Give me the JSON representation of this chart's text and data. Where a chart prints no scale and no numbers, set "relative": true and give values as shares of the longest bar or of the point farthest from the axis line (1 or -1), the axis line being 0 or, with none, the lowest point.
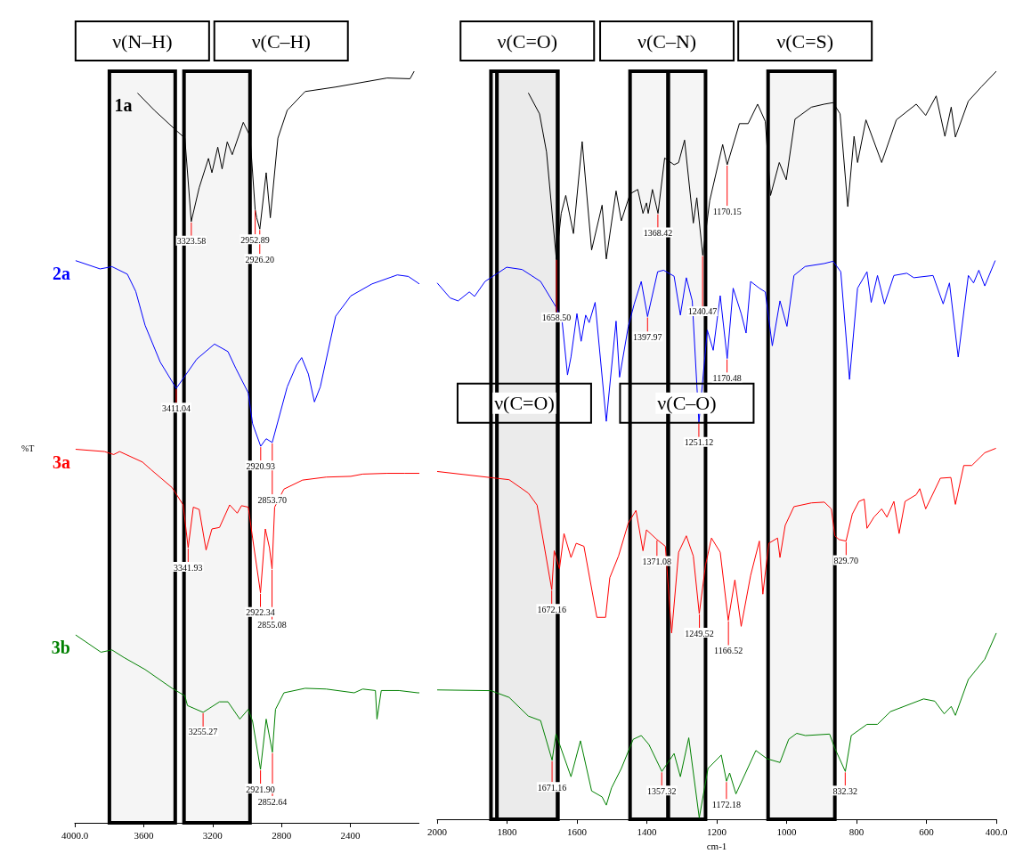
{
  "chart_data": [
    {
      "type": "line",
      "relative": true,
      "ylabel": "%T",
      "xlim": [
        4000,
        2000
      ],
      "xticks": [
        {
          "value": 4000,
          "label": "4000.0"
        },
        3600,
        3200,
        2800,
        2400,
        {
          "value": 2000,
          "label": null
        }
      ],
      "series": [
        {
          "name": "1a",
          "color": "#000000",
          "x": [
            3636,
            3538,
            3415,
            3361,
            3324,
            3278,
            3224,
            3204,
            3170,
            3145,
            3115,
            3086,
            3022,
            2983,
            2953,
            2944,
            2926,
            2889,
            2865,
            2821,
            2767,
            2663,
            2486,
            2187,
            2054,
            2030
          ],
          "values": [
            0.971,
            0.948,
            0.922,
            0.911,
            0.8,
            0.845,
            0.884,
            0.865,
            0.899,
            0.87,
            0.906,
            0.889,
            0.932,
            0.914,
            0.816,
            0.805,
            0.79,
            0.865,
            0.805,
            0.911,
            0.948,
            0.973,
            0.979,
            0.991,
            0.99,
            1.0
          ]
        },
        {
          "name": "2a",
          "color": "#0000ff",
          "x": [
            3995,
            3853,
            3784,
            3695,
            3646,
            3592,
            3504,
            3411,
            3292,
            3189,
            3111,
            3066,
            2993,
            2968,
            2921,
            2889,
            2854,
            2767,
            2713,
            2683,
            2644,
            2609,
            2575,
            2486,
            2398,
            2275,
            2128,
            2064,
            2000
          ],
          "values": [
            0.748,
            0.737,
            0.74,
            0.73,
            0.707,
            0.662,
            0.613,
            0.578,
            0.617,
            0.637,
            0.627,
            0.605,
            0.572,
            0.531,
            0.501,
            0.511,
            0.506,
            0.58,
            0.609,
            0.619,
            0.597,
            0.56,
            0.58,
            0.674,
            0.701,
            0.717,
            0.729,
            0.727,
            0.717
          ]
        },
        {
          "name": "3a",
          "color": "#ff0000",
          "x": [
            3995,
            3828,
            3774,
            3740,
            3607,
            3558,
            3435,
            3371,
            3342,
            3312,
            3278,
            3238,
            3204,
            3160,
            3101,
            3057,
            3032,
            2993,
            2968,
            2922,
            2894,
            2870,
            2855,
            2840,
            2786,
            2678,
            2541,
            2398,
            2329,
            2187,
            2084,
            2000
          ],
          "values": [
            0.497,
            0.494,
            0.49,
            0.494,
            0.48,
            0.47,
            0.446,
            0.423,
            0.366,
            0.42,
            0.417,
            0.363,
            0.391,
            0.393,
            0.423,
            0.412,
            0.422,
            0.42,
            0.379,
            0.306,
            0.391,
            0.366,
            0.338,
            0.42,
            0.444,
            0.456,
            0.46,
            0.461,
            0.464,
            0.465,
            0.465,
            0.465
          ]
        },
        {
          "name": "3b",
          "color": "#008000",
          "x": [
            3995,
            3848,
            3784,
            3715,
            3592,
            3435,
            3361,
            3346,
            3255,
            3160,
            3111,
            3042,
            2993,
            2968,
            2922,
            2889,
            2853,
            2835,
            2786,
            2663,
            2541,
            2378,
            2329,
            2255,
            2246,
            2221,
            2118,
            2010,
            2000
          ],
          "values": [
            0.25,
            0.227,
            0.23,
            0.22,
            0.204,
            0.179,
            0.169,
            0.156,
            0.147,
            0.161,
            0.161,
            0.138,
            0.151,
            0.135,
            0.071,
            0.138,
            0.094,
            0.151,
            0.173,
            0.179,
            0.178,
            0.173,
            0.178,
            0.176,
            0.138,
            0.176,
            0.176,
            0.173,
            0.173
          ]
        }
      ],
      "bands": [
        {
          "axis": "x",
          "from": 3799,
          "to": 3417,
          "label": "ν(N–H)"
        },
        {
          "axis": "x",
          "from": 3366,
          "to": 2983,
          "label": "ν(C–H)"
        }
      ],
      "annotations": [
        {
          "text": "3323.58",
          "x": 3323.58,
          "y": 0.8
        },
        {
          "text": "2952.89",
          "x": 2952.89,
          "y": 0.816
        },
        {
          "text": "2926.20",
          "x": 2926.2,
          "y": 0.79
        },
        {
          "text": "3411.04",
          "x": 3411.04,
          "y": 0.578
        },
        {
          "text": "2920.93",
          "x": 2920.93,
          "y": 0.501
        },
        {
          "text": "2853.70",
          "x": 2853.7,
          "y": 0.506
        },
        {
          "text": "3341.93",
          "x": 3341.93,
          "y": 0.366
        },
        {
          "text": "2922.34",
          "x": 2922.34,
          "y": 0.306
        },
        {
          "text": "2855.08",
          "x": 2855.08,
          "y": 0.338
        },
        {
          "text": "3255.27",
          "x": 3255.27,
          "y": 0.147
        },
        {
          "text": "2921.90",
          "x": 2921.9,
          "y": 0.071
        },
        {
          "text": "2852.64",
          "x": 2852.64,
          "y": 0.094
        }
      ]
    },
    {
      "type": "line",
      "relative": true,
      "xlabel": "cm-1",
      "xlim": [
        2000,
        400
      ],
      "xticks": [
        2000,
        1800,
        1600,
        1400,
        1200,
        1000,
        800,
        600,
        {
          "value": 400,
          "label": "400.0"
        }
      ],
      "series": [
        {
          "color": "#000000",
          "x": [
            1739,
            1707,
            1687,
            1659,
            1645,
            1632,
            1610,
            1585,
            1558,
            1528,
            1516,
            1488,
            1473,
            1448,
            1426,
            1411,
            1401,
            1396,
            1384,
            1368,
            1349,
            1322,
            1309,
            1292,
            1267,
            1257,
            1240,
            1220,
            1183,
            1170,
            1135,
            1110,
            1083,
            1061,
            1046,
            1021,
            1001,
            976,
            929,
            892,
            867,
            847,
            825,
            807,
            797,
            773,
            728,
            686,
            629,
            602,
            572,
            547,
            529,
            517,
            480,
            443,
            400
          ],
          "values": [
            0.971,
            0.943,
            0.892,
            0.749,
            0.81,
            0.834,
            0.783,
            0.906,
            0.761,
            0.821,
            0.749,
            0.84,
            0.8,
            0.836,
            0.842,
            0.81,
            0.824,
            0.81,
            0.842,
            0.81,
            0.884,
            0.875,
            0.878,
            0.908,
            0.797,
            0.831,
            0.754,
            0.827,
            0.902,
            0.875,
            0.93,
            0.93,
            0.956,
            0.933,
            0.834,
            0.878,
            0.855,
            0.936,
            0.952,
            0.956,
            0.958,
            0.943,
            0.819,
            0.913,
            0.878,
            0.935,
            0.878,
            0.935,
            0.956,
            0.941,
            0.967,
            0.913,
            0.952,
            0.912,
            0.96,
            0.979,
            1.0
          ]
        },
        {
          "color": "#0000ff",
          "x": [
            2000,
            1963,
            1940,
            1908,
            1893,
            1863,
            1801,
            1757,
            1704,
            1660,
            1642,
            1627,
            1617,
            1600,
            1588,
            1575,
            1565,
            1548,
            1516,
            1488,
            1478,
            1453,
            1436,
            1416,
            1398,
            1369,
            1352,
            1322,
            1304,
            1287,
            1270,
            1251,
            1227,
            1210,
            1190,
            1170,
            1153,
            1130,
            1116,
            1103,
            1078,
            1061,
            1041,
            1019,
            999,
            979,
            947,
            892,
            867,
            845,
            820,
            797,
            770,
            758,
            740,
            720,
            693,
            656,
            636,
            581,
            552,
            534,
            509,
            480,
            465,
            450,
            433,
            403
          ],
          "values": [
            0.717,
            0.697,
            0.693,
            0.705,
            0.699,
            0.719,
            0.738,
            0.735,
            0.719,
            0.685,
            0.664,
            0.594,
            0.618,
            0.676,
            0.639,
            0.674,
            0.664,
            0.691,
            0.532,
            0.666,
            0.591,
            0.659,
            0.689,
            0.719,
            0.672,
            0.732,
            0.734,
            0.726,
            0.674,
            0.724,
            0.693,
            0.53,
            0.654,
            0.627,
            0.7,
            0.616,
            0.71,
            0.676,
            0.65,
            0.719,
            0.71,
            0.705,
            0.633,
            0.693,
            0.659,
            0.727,
            0.739,
            0.743,
            0.746,
            0.732,
            0.588,
            0.71,
            0.732,
            0.691,
            0.727,
            0.689,
            0.727,
            0.73,
            0.724,
            0.727,
            0.689,
            0.717,
            0.618,
            0.727,
            0.717,
            0.734,
            0.713,
            0.747
          ]
        },
        {
          "color": "#ff0000",
          "x": [
            2000,
            1794,
            1739,
            1714,
            1672,
            1665,
            1650,
            1637,
            1617,
            1602,
            1580,
            1543,
            1518,
            1506,
            1481,
            1453,
            1431,
            1411,
            1401,
            1371,
            1347,
            1329,
            1309,
            1287,
            1267,
            1250,
            1232,
            1215,
            1190,
            1167,
            1148,
            1130,
            1103,
            1078,
            1068,
            1051,
            1026,
            1019,
            1004,
            979,
            929,
            892,
            872,
            862,
            850,
            830,
            812,
            793,
            778,
            770,
            750,
            728,
            713,
            693,
            678,
            661,
            629,
            619,
            602,
            560,
            530,
            517,
            493,
            470,
            433,
            401
          ],
          "values": [
            0.465,
            0.454,
            0.436,
            0.42,
            0.307,
            0.359,
            0.335,
            0.382,
            0.35,
            0.369,
            0.365,
            0.27,
            0.27,
            0.323,
            0.352,
            0.396,
            0.413,
            0.359,
            0.387,
            0.374,
            0.365,
            0.249,
            0.357,
            0.379,
            0.352,
            0.275,
            0.34,
            0.376,
            0.357,
            0.266,
            0.32,
            0.258,
            0.326,
            0.372,
            0.301,
            0.369,
            0.376,
            0.35,
            0.393,
            0.418,
            0.423,
            0.424,
            0.415,
            0.379,
            0.374,
            0.372,
            0.408,
            0.425,
            0.428,
            0.389,
            0.404,
            0.415,
            0.404,
            0.425,
            0.382,
            0.425,
            0.434,
            0.442,
            0.415,
            0.456,
            0.457,
            0.421,
            0.473,
            0.473,
            0.49,
            0.496
          ]
        },
        {
          "color": "#008000",
          "x": [
            2000,
            1846,
            1794,
            1739,
            1704,
            1671,
            1660,
            1617,
            1590,
            1558,
            1528,
            1516,
            1501,
            1473,
            1439,
            1416,
            1394,
            1357,
            1322,
            1304,
            1280,
            1250,
            1225,
            1187,
            1172,
            1163,
            1145,
            1088,
            1056,
            1019,
            994,
            971,
            946,
            877,
            862,
            832,
            815,
            770,
            740,
            703,
            608,
            576,
            549,
            529,
            517,
            480,
            433,
            400
          ],
          "values": [
            0.173,
            0.172,
            0.163,
            0.138,
            0.132,
            0.079,
            0.114,
            0.057,
            0.105,
            0.038,
            0.03,
            0.019,
            0.042,
            0.068,
            0.107,
            0.112,
            0.1,
            0.064,
            0.088,
            0.057,
            0.109,
            0.002,
            0.068,
            0.086,
            0.051,
            0.062,
            0.034,
            0.092,
            0.081,
            0.076,
            0.107,
            0.115,
            0.112,
            0.114,
            0.095,
            0.064,
            0.112,
            0.127,
            0.127,
            0.144,
            0.161,
            0.158,
            0.141,
            0.151,
            0.139,
            0.187,
            0.214,
            0.249
          ]
        }
      ],
      "bands": [
        {
          "axis": "x",
          "from": 1829,
          "to": 1655,
          "label": "ν(C=O)"
        },
        {
          "axis": "x",
          "from": 1846,
          "to": 1655,
          "label": "ν(C=O)"
        },
        {
          "axis": "x",
          "from": 1448,
          "to": 1339,
          "label": "ν(C–N)"
        },
        {
          "axis": "x",
          "from": 1339,
          "to": 1232,
          "label": "ν(C–O)"
        },
        {
          "axis": "x",
          "from": 1053,
          "to": 862,
          "label": "ν(C=S)"
        }
      ],
      "annotations": [
        {
          "text": "1658.50",
          "x": 1658.5,
          "y": 0.749
        },
        {
          "text": "1368.42",
          "x": 1368.42,
          "y": 0.81
        },
        {
          "text": "1240.47",
          "x": 1240.47,
          "y": 0.754
        },
        {
          "text": "1170.15",
          "x": 1170.15,
          "y": 0.875
        },
        {
          "text": "1397.97",
          "x": 1397.97,
          "y": 0.672
        },
        {
          "text": "1251.12",
          "x": 1251.12,
          "y": 0.53
        },
        {
          "text": "1170.48",
          "x": 1170.48,
          "y": 0.616
        },
        {
          "text": "1672.16",
          "x": 1672.16,
          "y": 0.307
        },
        {
          "text": "1371.08",
          "x": 1371.08,
          "y": 0.374
        },
        {
          "text": "1249.52",
          "x": 1249.52,
          "y": 0.275
        },
        {
          "text": "1166.52",
          "x": 1166.52,
          "y": 0.266
        },
        {
          "text": "829.70",
          "x": 829.7,
          "y": 0.372
        },
        {
          "text": "1671.16",
          "x": 1671.16,
          "y": 0.079
        },
        {
          "text": "1357.32",
          "x": 1357.32,
          "y": 0.064
        },
        {
          "text": "1172.18",
          "x": 1172.18,
          "y": 0.051
        },
        {
          "text": "832.32",
          "x": 832.32,
          "y": 0.064
        }
      ]
    }
  ]
}
